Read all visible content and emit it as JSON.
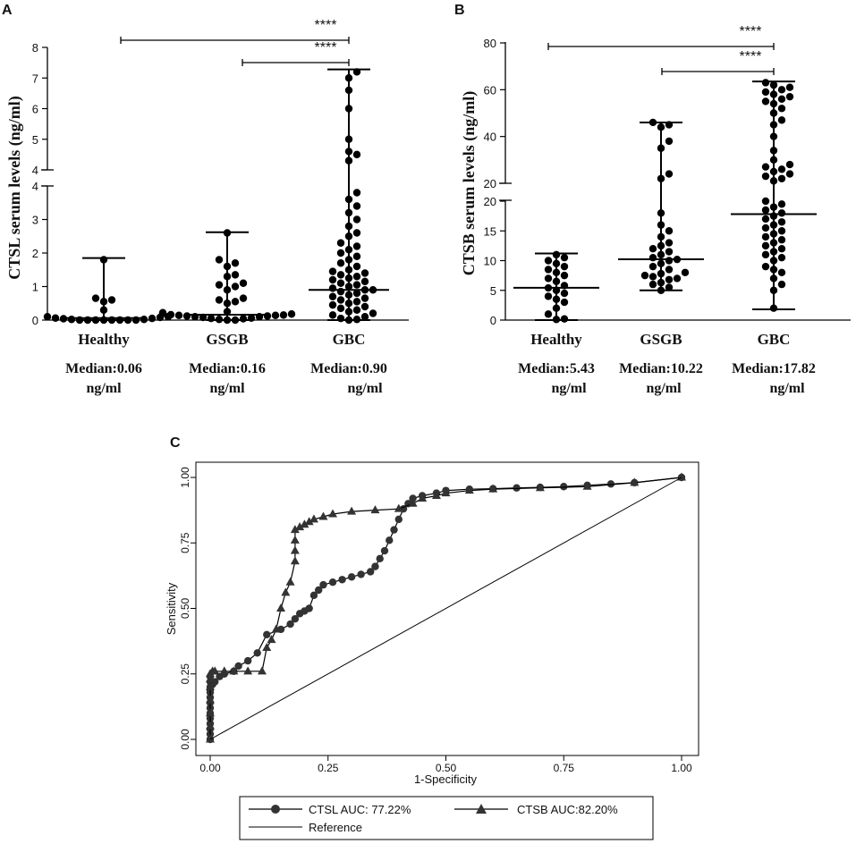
{
  "panel_a": {
    "letter": "A",
    "ylabel": "CTSL  serum levels (ng/ml)",
    "upper_ticks": [
      "8",
      "7",
      "6",
      "5",
      "4"
    ],
    "lower_ticks": [
      "4",
      "3",
      "2",
      "1",
      "0"
    ],
    "sig_labels": [
      "****",
      "****"
    ],
    "groups": [
      {
        "name": "Healthy",
        "median_text": "Median:0.06",
        "unit": "ng/ml"
      },
      {
        "name": "GSGB",
        "median_text": "Median:0.16",
        "unit": "ng/ml"
      },
      {
        "name": "GBC",
        "median_text": "Median:0.90",
        "unit": "ng/ml"
      }
    ]
  },
  "panel_b": {
    "letter": "B",
    "ylabel": "CTSB  serum levels (ng/ml)",
    "upper_ticks": [
      "80",
      "60",
      "40",
      "20"
    ],
    "lower_ticks": [
      "20",
      "15",
      "10",
      "5",
      "0"
    ],
    "sig_labels": [
      "****",
      "****"
    ],
    "groups": [
      {
        "name": "Healthy",
        "median_text": "Median:5.43",
        "unit": "ng/ml"
      },
      {
        "name": "GSGB",
        "median_text": "Median:10.22",
        "unit": "ng/ml"
      },
      {
        "name": "GBC",
        "median_text": "Median:17.82",
        "unit": "ng/ml"
      }
    ]
  },
  "panel_c": {
    "letter": "C",
    "xlabel": "1-Specificity",
    "ylabel": "Sensitivity",
    "xticks": [
      "0.00",
      "0.25",
      "0.50",
      "0.75",
      "1.00"
    ],
    "yticks": [
      "0.00",
      "0.25",
      "0.50",
      "0.75",
      "1.00"
    ],
    "legend": {
      "ctsl": "CTSL AUC: 77.22%",
      "ctsb": "CTSB AUC:82.20%",
      "reference": "Reference"
    }
  },
  "chart_data": [
    {
      "type": "scatter",
      "panel": "A",
      "title": "",
      "xlabel": "",
      "ylabel": "CTSL serum levels (ng/ml)",
      "ylim": [
        0,
        8
      ],
      "axis_break": [
        4,
        4
      ],
      "categories": [
        "Healthy",
        "GSGB",
        "GBC"
      ],
      "medians": [
        0.06,
        0.16,
        0.9
      ],
      "ranges": [
        [
          0,
          1.85
        ],
        [
          0,
          2.62
        ],
        [
          0,
          7.28
        ]
      ],
      "significance": [
        {
          "from": "Healthy",
          "to": "GBC",
          "label": "****"
        },
        {
          "from": "GSGB",
          "to": "GBC",
          "label": "****"
        }
      ],
      "points": [
        [
          0.0,
          0.0,
          0.0,
          0.0,
          0.0,
          0.0,
          0.0,
          0.0,
          0.02,
          0.02,
          0.04,
          0.05,
          0.06,
          0.08,
          0.1,
          0.1,
          0.55,
          0.6,
          0.65,
          0.3,
          1.8
        ],
        [
          0.0,
          0.0,
          0.02,
          0.04,
          0.05,
          0.06,
          0.08,
          0.1,
          0.12,
          0.14,
          0.15,
          0.16,
          0.18,
          0.2,
          0.22,
          0.25,
          0.5,
          0.55,
          0.6,
          0.65,
          0.9,
          1.0,
          1.05,
          1.1,
          1.3,
          1.35,
          1.6,
          1.7,
          1.8,
          2.6,
          0.1,
          0.12,
          0.14
        ],
        [
          0.0,
          0.02,
          0.05,
          0.1,
          0.15,
          0.2,
          0.25,
          0.3,
          0.35,
          0.4,
          0.45,
          0.5,
          0.55,
          0.6,
          0.65,
          0.7,
          0.75,
          0.8,
          0.85,
          0.9,
          0.9,
          0.95,
          1.0,
          1.05,
          1.1,
          1.15,
          1.2,
          1.25,
          1.3,
          1.35,
          1.4,
          1.45,
          1.5,
          1.6,
          1.7,
          1.8,
          1.9,
          2.0,
          2.1,
          2.2,
          2.3,
          2.5,
          2.6,
          2.8,
          3.0,
          3.2,
          3.4,
          3.6,
          3.8,
          4.3,
          4.5,
          4.6,
          5.0,
          6.0,
          6.6,
          7.0,
          7.2
        ]
      ]
    },
    {
      "type": "scatter",
      "panel": "B",
      "title": "",
      "xlabel": "",
      "ylabel": "CTSB serum levels (ng/ml)",
      "ylim": [
        0,
        80
      ],
      "axis_break": [
        20,
        20
      ],
      "categories": [
        "Healthy",
        "GSGB",
        "GBC"
      ],
      "medians": [
        5.43,
        10.22,
        17.82
      ],
      "ranges": [
        [
          0,
          11.2
        ],
        [
          5.0,
          46.0
        ],
        [
          1.8,
          63.5
        ]
      ],
      "significance": [
        {
          "from": "Healthy",
          "to": "GBC",
          "label": "****"
        },
        {
          "from": "GSGB",
          "to": "GBC",
          "label": "****"
        }
      ],
      "points": [
        [
          0.1,
          0.2,
          1.0,
          2.0,
          3.0,
          3.5,
          4.0,
          4.5,
          5.0,
          5.4,
          5.8,
          6.5,
          7.0,
          7.5,
          8.0,
          8.5,
          9.0,
          9.5,
          10.0,
          10.5,
          11.0
        ],
        [
          5.0,
          5.5,
          6.0,
          6.3,
          6.8,
          7.0,
          7.3,
          7.5,
          7.8,
          8.0,
          8.5,
          9.0,
          9.5,
          10.0,
          10.2,
          10.5,
          11.0,
          11.5,
          12.0,
          12.5,
          13.0,
          14.0,
          15.0,
          16.0,
          18.0,
          22.0,
          24.0,
          35.0,
          38.0,
          44.0,
          45.0,
          46.0
        ],
        [
          2.0,
          5.0,
          6.0,
          7.0,
          8.0,
          8.5,
          9.0,
          10.0,
          10.5,
          11.0,
          11.5,
          12.0,
          12.5,
          13.0,
          13.5,
          14.0,
          14.5,
          15.0,
          15.5,
          16.0,
          16.5,
          17.0,
          17.5,
          18.0,
          18.5,
          19.0,
          19.5,
          20.0,
          21.0,
          22.0,
          23.0,
          24.0,
          25.0,
          26.0,
          27.0,
          28.0,
          30.0,
          34.0,
          40.0,
          45.0,
          47.0,
          50.0,
          52.0,
          54.0,
          55.0,
          56.0,
          57.0,
          58.0,
          59.0,
          60.0,
          61.0,
          62.0,
          63.0
        ]
      ]
    },
    {
      "type": "line",
      "panel": "C",
      "title": "",
      "xlabel": "1-Specificity",
      "ylabel": "Sensitivity",
      "xlim": [
        0,
        1
      ],
      "ylim": [
        0,
        1
      ],
      "series": [
        {
          "name": "CTSL AUC: 77.22%",
          "marker": "circle",
          "x": [
            0.0,
            0.0,
            0.0,
            0.0,
            0.0,
            0.0,
            0.0,
            0.0,
            0.0,
            0.0,
            0.0,
            0.0,
            0.0,
            0.0,
            0.005,
            0.01,
            0.02,
            0.03,
            0.05,
            0.06,
            0.08,
            0.1,
            0.12,
            0.15,
            0.17,
            0.18,
            0.19,
            0.2,
            0.21,
            0.22,
            0.23,
            0.24,
            0.26,
            0.28,
            0.3,
            0.32,
            0.34,
            0.35,
            0.36,
            0.37,
            0.38,
            0.39,
            0.4,
            0.41,
            0.42,
            0.43,
            0.45,
            0.48,
            0.5,
            0.55,
            0.6,
            0.65,
            0.7,
            0.75,
            0.8,
            0.85,
            0.9,
            1.0
          ],
          "y": [
            0.0,
            0.02,
            0.04,
            0.06,
            0.08,
            0.1,
            0.12,
            0.14,
            0.16,
            0.18,
            0.2,
            0.22,
            0.24,
            0.19,
            0.21,
            0.22,
            0.24,
            0.25,
            0.26,
            0.28,
            0.3,
            0.33,
            0.4,
            0.42,
            0.44,
            0.46,
            0.48,
            0.49,
            0.5,
            0.55,
            0.57,
            0.59,
            0.6,
            0.61,
            0.62,
            0.63,
            0.64,
            0.66,
            0.69,
            0.72,
            0.76,
            0.8,
            0.84,
            0.88,
            0.9,
            0.92,
            0.93,
            0.94,
            0.95,
            0.955,
            0.957,
            0.96,
            0.962,
            0.965,
            0.97,
            0.975,
            0.98,
            1.0
          ]
        },
        {
          "name": "CTSB AUC:82.20%",
          "marker": "triangle",
          "x": [
            0.0,
            0.0,
            0.0,
            0.0,
            0.0,
            0.0,
            0.0,
            0.005,
            0.01,
            0.03,
            0.05,
            0.08,
            0.11,
            0.12,
            0.13,
            0.14,
            0.15,
            0.16,
            0.17,
            0.18,
            0.18,
            0.18,
            0.18,
            0.19,
            0.2,
            0.21,
            0.22,
            0.24,
            0.26,
            0.3,
            0.35,
            0.4,
            0.43,
            0.45,
            0.48,
            0.5,
            0.55,
            0.6,
            0.7,
            0.8,
            0.9,
            1.0
          ],
          "y": [
            0.0,
            0.05,
            0.1,
            0.15,
            0.2,
            0.23,
            0.25,
            0.26,
            0.26,
            0.26,
            0.26,
            0.26,
            0.26,
            0.35,
            0.38,
            0.42,
            0.5,
            0.56,
            0.6,
            0.68,
            0.72,
            0.76,
            0.8,
            0.81,
            0.82,
            0.83,
            0.84,
            0.85,
            0.86,
            0.87,
            0.875,
            0.88,
            0.9,
            0.92,
            0.93,
            0.94,
            0.95,
            0.955,
            0.96,
            0.965,
            0.98,
            1.0
          ]
        },
        {
          "name": "Reference",
          "marker": "none",
          "x": [
            0,
            1
          ],
          "y": [
            0,
            1
          ]
        }
      ]
    }
  ]
}
